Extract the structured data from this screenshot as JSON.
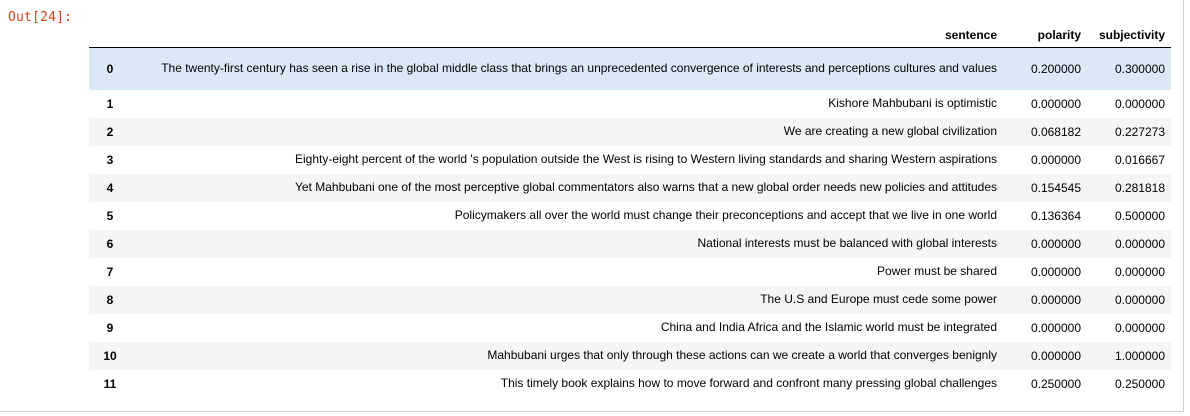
{
  "cell": {
    "prompt": "Out[24]:"
  },
  "table": {
    "columns": [
      "",
      "sentence",
      "polarity",
      "subjectivity"
    ],
    "rows": [
      {
        "index": "0",
        "sentence": "The twenty-first century has seen a rise in the global middle class that brings an unprecedented convergence of interests and perceptions cultures and values",
        "polarity": "0.200000",
        "subjectivity": "0.300000"
      },
      {
        "index": "1",
        "sentence": "Kishore Mahbubani is optimistic",
        "polarity": "0.000000",
        "subjectivity": "0.000000"
      },
      {
        "index": "2",
        "sentence": "We are creating a new global civilization",
        "polarity": "0.068182",
        "subjectivity": "0.227273"
      },
      {
        "index": "3",
        "sentence": "Eighty-eight percent of the world 's population outside the West is rising to Western living standards and sharing Western aspirations",
        "polarity": "0.000000",
        "subjectivity": "0.016667"
      },
      {
        "index": "4",
        "sentence": "Yet Mahbubani one of the most perceptive global commentators also warns that a new global order needs new policies and attitudes",
        "polarity": "0.154545",
        "subjectivity": "0.281818"
      },
      {
        "index": "5",
        "sentence": "Policymakers all over the world must change their preconceptions and accept that we live in one world",
        "polarity": "0.136364",
        "subjectivity": "0.500000"
      },
      {
        "index": "6",
        "sentence": "National interests must be balanced with global interests",
        "polarity": "0.000000",
        "subjectivity": "0.000000"
      },
      {
        "index": "7",
        "sentence": "Power must be shared",
        "polarity": "0.000000",
        "subjectivity": "0.000000"
      },
      {
        "index": "8",
        "sentence": "The U.S and Europe must cede some power",
        "polarity": "0.000000",
        "subjectivity": "0.000000"
      },
      {
        "index": "9",
        "sentence": "China and India Africa and the Islamic world must be integrated",
        "polarity": "0.000000",
        "subjectivity": "0.000000"
      },
      {
        "index": "10",
        "sentence": "Mahbubani urges that only through these actions can we create a world that converges benignly",
        "polarity": "0.000000",
        "subjectivity": "1.000000"
      },
      {
        "index": "11",
        "sentence": "This timely book explains how to move forward and confront many pressing global challenges",
        "polarity": "0.250000",
        "subjectivity": "0.250000"
      }
    ]
  },
  "colors": {
    "prompt": "#d84315",
    "selected_row": "#dbe9f7",
    "striped_row": "#f5f5f5"
  }
}
